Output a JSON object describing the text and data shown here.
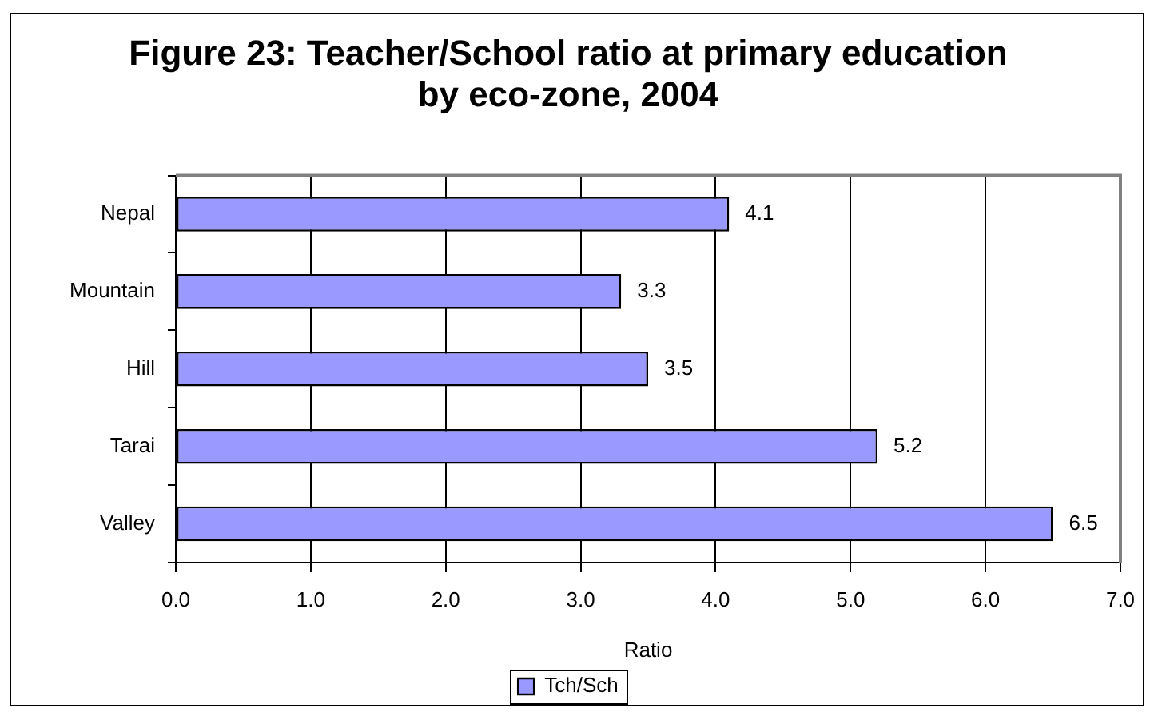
{
  "chart_data": {
    "type": "bar",
    "title": "Figure 23: Teacher/School ratio at primary education by eco-zone, 2004",
    "orientation": "horizontal",
    "categories": [
      "Nepal",
      "Mountain",
      "Hill",
      "Tarai",
      "Valley"
    ],
    "series": [
      {
        "name": "Tch/Sch",
        "color": "#9999ff",
        "values": [
          4.1,
          3.3,
          3.5,
          5.2,
          6.5
        ]
      }
    ],
    "xlabel": "Ratio",
    "xlim": [
      0,
      7
    ],
    "xticks": [
      {
        "value": 0,
        "label": "0.0"
      },
      {
        "value": 1,
        "label": "1.0"
      },
      {
        "value": 2,
        "label": "2.0"
      },
      {
        "value": 3,
        "label": "3.0"
      },
      {
        "value": 4,
        "label": "4.0"
      },
      {
        "value": 5,
        "label": "5.0"
      },
      {
        "value": 6,
        "label": "6.0"
      },
      {
        "value": 7,
        "label": "7.0"
      }
    ],
    "grid": "x",
    "legend": "bottom",
    "data_labels": true
  }
}
